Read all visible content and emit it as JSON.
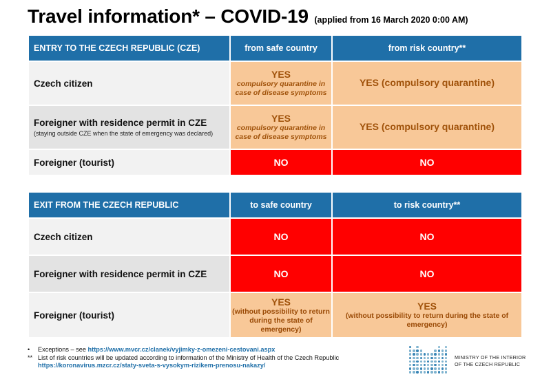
{
  "title": {
    "main": "Travel information* – COVID-19",
    "sub": "(applied from 16 March 2020 0:00 AM)"
  },
  "entry": {
    "header": "ENTRY TO THE CZECH REPUBLIC (CZE)",
    "col_safe": "from safe country",
    "col_risk": "from risk country**",
    "rows": [
      {
        "label": "Czech citizen",
        "note": "",
        "safe": {
          "yes": "YES",
          "detail": "compulsory quarantine in case of disease symptoms"
        },
        "risk": "YES (compulsory quarantine)"
      },
      {
        "label": "Foreigner with residence permit in CZE",
        "note": "(staying outside CZE when the state of emergency was declared)",
        "safe": {
          "yes": "YES",
          "detail": "compulsory quarantine in case of disease symptoms"
        },
        "risk": "YES (compulsory quarantine)"
      },
      {
        "label": "Foreigner (tourist)",
        "safe": "NO",
        "risk": "NO"
      }
    ]
  },
  "exit": {
    "header": "EXIT FROM THE CZECH REPUBLIC",
    "col_safe": "to safe country",
    "col_risk": "to risk country**",
    "rows": [
      {
        "label": "Czech citizen",
        "safe": "NO",
        "risk": "NO"
      },
      {
        "label": "Foreigner with residence permit in CZE",
        "safe": "NO",
        "risk": "NO"
      },
      {
        "label": "Foreigner (tourist)",
        "safe": {
          "yes": "YES",
          "detail": "(without possibility to return during the state of emergency)"
        },
        "risk": {
          "yes": "YES",
          "detail": "(without possibility to return during the state of emergency)"
        }
      }
    ]
  },
  "footnotes": {
    "exceptions_mark": "•",
    "exceptions_text": "Exceptions – see ",
    "exceptions_link": "https://www.mvcr.cz/clanek/vyjimky-z-omezeni-cestovani.aspx",
    "risk_mark": "**",
    "risk_text": "List of risk countries will be updated according to information of the Ministry of Health of the Czech Republic",
    "risk_link": "https://koronavirus.mzcr.cz/staty-sveta-s-vysokym-rizikem-prenosu-nakazy/"
  },
  "logo": {
    "line1": "MINISTRY OF THE INTERIOR",
    "line2": "OF THE CZECH REPUBLIC"
  },
  "colors": {
    "header_blue": "#1f6fa8",
    "peach": "#f8c898",
    "peach_text": "#a0520a",
    "red": "#ff0000",
    "row_gray_light": "#f2f2f2",
    "row_gray_mid": "#e3e3e3"
  }
}
